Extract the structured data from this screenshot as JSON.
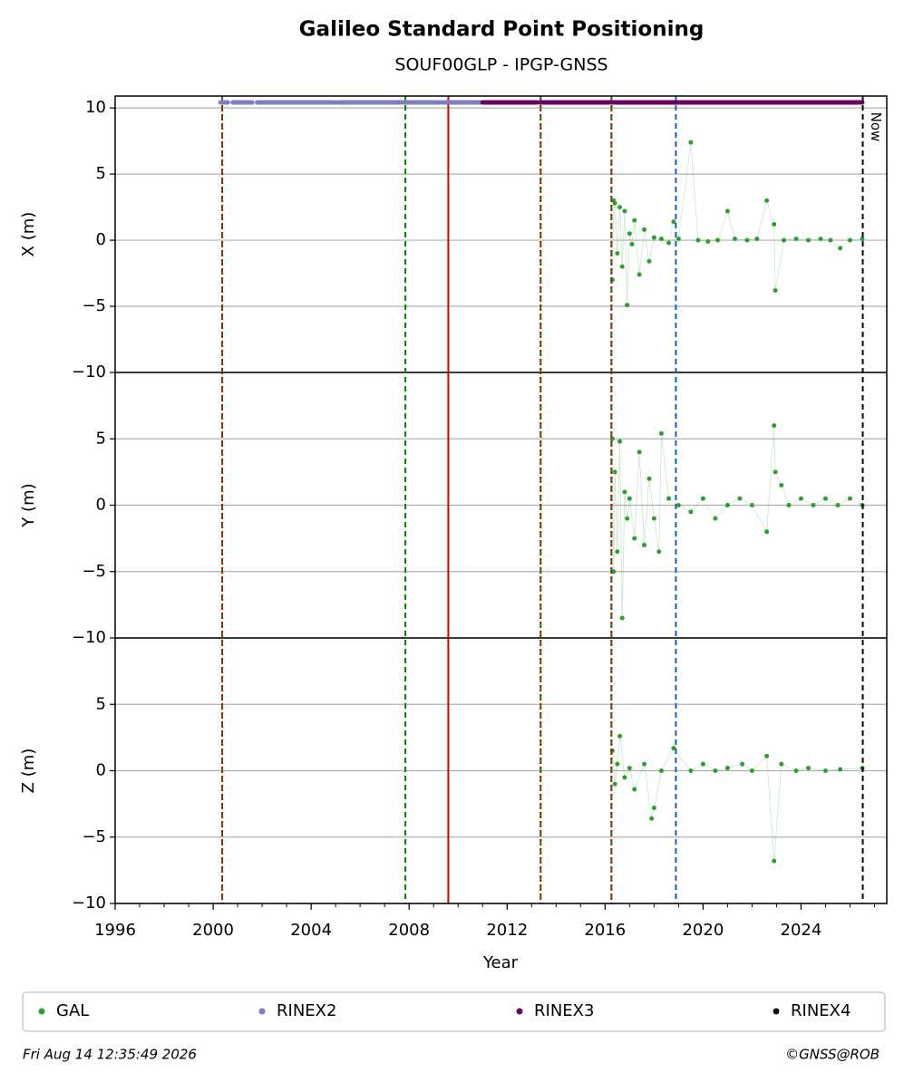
{
  "chart_data": {
    "type": "scatter",
    "title": "Galileo Standard Point Positioning",
    "subtitle": "SOUF00GLP - IPGP-GNSS",
    "xlabel": "Year",
    "xlim": [
      1996,
      2027.5
    ],
    "xticks": [
      1996,
      2000,
      2004,
      2008,
      2012,
      2016,
      2020,
      2024
    ],
    "vlines": [
      {
        "x": 2000.37,
        "color": "#008000",
        "style": "dashed"
      },
      {
        "x": 2000.37,
        "color": "#e00000",
        "style": "dotted"
      },
      {
        "x": 2007.85,
        "color": "#008000",
        "style": "dashed"
      },
      {
        "x": 2009.6,
        "color": "#d00000",
        "style": "solid"
      },
      {
        "x": 2013.37,
        "color": "#008000",
        "style": "dashed"
      },
      {
        "x": 2013.37,
        "color": "#e00000",
        "style": "dotted"
      },
      {
        "x": 2016.26,
        "color": "#008000",
        "style": "dashed"
      },
      {
        "x": 2016.26,
        "color": "#e00000",
        "style": "dotted"
      },
      {
        "x": 2018.89,
        "color": "#1060c0",
        "style": "dashed"
      },
      {
        "x": 2026.52,
        "color": "#000000",
        "style": "dashed",
        "label": "Now"
      }
    ],
    "rinex": [
      {
        "name": "RINEX2",
        "color": "#7f7fbf",
        "spans": [
          [
            2000.3,
            2000.6
          ],
          [
            2000.8,
            2001.6
          ],
          [
            2001.8,
            2005.0
          ],
          [
            2005.1,
            2009.3
          ],
          [
            2009.4,
            2010.9
          ]
        ]
      },
      {
        "name": "RINEX3",
        "color": "#6a0060",
        "spans": [
          [
            2011.0,
            2013.2
          ],
          [
            2013.3,
            2016.2
          ],
          [
            2016.3,
            2026.5
          ]
        ]
      },
      {
        "name": "RINEX4",
        "color": "#1a0a1a",
        "spans": []
      }
    ],
    "panels": [
      {
        "ylabel": "X (m)",
        "ylim": [
          -10,
          10.9
        ],
        "yticks": [
          {
            "value": -10,
            "label": "−10"
          },
          {
            "value": -5,
            "label": "−5"
          },
          0,
          5,
          10
        ],
        "series": [
          {
            "name": "GAL",
            "color": "#2ca02c",
            "x": [
              2016.3,
              2016.35,
              2016.4,
              2016.5,
              2016.6,
              2016.7,
              2016.8,
              2016.9,
              2017.0,
              2017.1,
              2017.2,
              2017.4,
              2017.6,
              2017.8,
              2018.0,
              2018.3,
              2018.6,
              2018.8,
              2019.0,
              2019.5,
              2019.8,
              2020.2,
              2020.6,
              2021.0,
              2021.3,
              2021.8,
              2022.2,
              2022.6,
              2022.9,
              2022.95,
              2023.3,
              2023.8,
              2024.3,
              2024.8,
              2025.2,
              2025.6,
              2026.0,
              2026.5
            ],
            "values": [
              -3,
              3,
              2.8,
              -1,
              2.5,
              -2,
              2.2,
              -4.9,
              0.5,
              -0.3,
              1.5,
              -2.6,
              0.8,
              -1.6,
              0.2,
              0.1,
              -0.2,
              1.4,
              0.1,
              7.4,
              0,
              -0.1,
              0,
              2.2,
              0.1,
              0,
              0.1,
              3.0,
              1.2,
              -3.8,
              0,
              0.1,
              0,
              0.1,
              0,
              -0.6,
              0,
              0.1
            ]
          }
        ]
      },
      {
        "ylabel": "Y (m)",
        "ylim": [
          -10,
          10
        ],
        "yticks": [
          {
            "value": -10,
            "label": "−10"
          },
          {
            "value": -5,
            "label": "−5"
          },
          0,
          5
        ],
        "series": [
          {
            "name": "GAL",
            "color": "#2ca02c",
            "x": [
              2016.3,
              2016.35,
              2016.4,
              2016.5,
              2016.6,
              2016.7,
              2016.8,
              2016.9,
              2017.0,
              2017.2,
              2017.4,
              2017.6,
              2017.8,
              2018.0,
              2018.2,
              2018.3,
              2018.6,
              2019.0,
              2019.5,
              2020.0,
              2020.5,
              2021.0,
              2021.5,
              2022.0,
              2022.6,
              2022.9,
              2022.95,
              2023.2,
              2023.5,
              2024.0,
              2024.5,
              2025.0,
              2025.5,
              2026.0,
              2026.5
            ],
            "values": [
              5,
              -5,
              2.5,
              -3.5,
              4.8,
              -8.5,
              1,
              -1,
              0.5,
              -2.5,
              4,
              -3,
              2,
              -1,
              -3.5,
              5.4,
              0.5,
              0,
              -0.5,
              0.5,
              -1,
              0,
              0.5,
              0,
              -2,
              6,
              2.5,
              1.5,
              0,
              0.5,
              0,
              0.5,
              0,
              0.5,
              0
            ]
          }
        ]
      },
      {
        "ylabel": "Z (m)",
        "ylim": [
          -10,
          10
        ],
        "yticks": [
          {
            "value": -10,
            "label": "−10"
          },
          {
            "value": -5,
            "label": "−5"
          },
          0,
          5
        ],
        "series": [
          {
            "name": "GAL",
            "color": "#2ca02c",
            "x": [
              2016.3,
              2016.4,
              2016.5,
              2016.6,
              2016.8,
              2017.0,
              2017.2,
              2017.6,
              2017.9,
              2018.0,
              2018.3,
              2018.8,
              2019.5,
              2020.0,
              2020.5,
              2021.0,
              2021.6,
              2022.0,
              2022.6,
              2022.9,
              2023.2,
              2023.8,
              2024.3,
              2025.0,
              2025.6,
              2026.5
            ],
            "values": [
              1.5,
              -1,
              0.5,
              2.6,
              -0.5,
              0.2,
              -1.4,
              0.5,
              -3.6,
              -2.8,
              0,
              1.7,
              0,
              0.5,
              0,
              0.2,
              0.5,
              0,
              1.1,
              -6.8,
              0.5,
              0,
              0.2,
              0,
              0.1,
              0.2
            ]
          }
        ]
      }
    ],
    "legend_position": "bottom",
    "timestamp": "Fri Aug 14 12:35:49 2026",
    "credit": "©GNSS@ROB"
  }
}
